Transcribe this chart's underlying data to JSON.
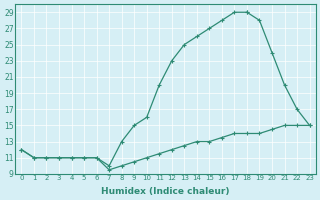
{
  "line1_x": [
    0,
    1,
    2,
    3,
    4,
    5,
    6,
    7,
    8,
    9,
    10,
    11,
    12,
    13,
    14,
    15,
    16,
    17,
    18
  ],
  "line1_y": [
    12,
    11,
    11,
    11,
    11,
    11,
    11,
    10,
    13,
    15,
    16,
    20,
    23,
    25,
    26,
    27,
    28,
    29,
    29
  ],
  "line2_x": [
    18,
    19,
    20,
    21,
    22,
    23
  ],
  "line2_y": [
    29,
    28,
    24,
    20,
    17,
    15
  ],
  "line3_x": [
    0,
    1,
    2,
    3,
    4,
    5,
    6,
    7,
    8,
    9,
    10,
    11,
    12,
    13,
    14,
    15,
    16,
    17,
    18,
    19,
    20,
    21,
    22,
    23
  ],
  "line3_y": [
    12,
    11,
    11,
    11,
    11,
    11,
    11,
    9.5,
    10,
    10.5,
    11,
    11.5,
    12,
    12.5,
    13,
    13,
    13.5,
    14,
    14,
    14,
    14.5,
    15,
    15,
    15
  ],
  "line_color": "#2e8b74",
  "bg_color": "#d6eff5",
  "grid_color": "#ffffff",
  "xlabel": "Humidex (Indice chaleur)",
  "yticks": [
    9,
    11,
    13,
    15,
    17,
    19,
    21,
    23,
    25,
    27,
    29
  ],
  "xticks": [
    0,
    1,
    2,
    3,
    4,
    5,
    6,
    7,
    8,
    9,
    10,
    11,
    12,
    13,
    14,
    15,
    16,
    17,
    18,
    19,
    20,
    21,
    22,
    23
  ],
  "xlim": [
    -0.5,
    23.5
  ],
  "ylim": [
    9,
    30
  ]
}
